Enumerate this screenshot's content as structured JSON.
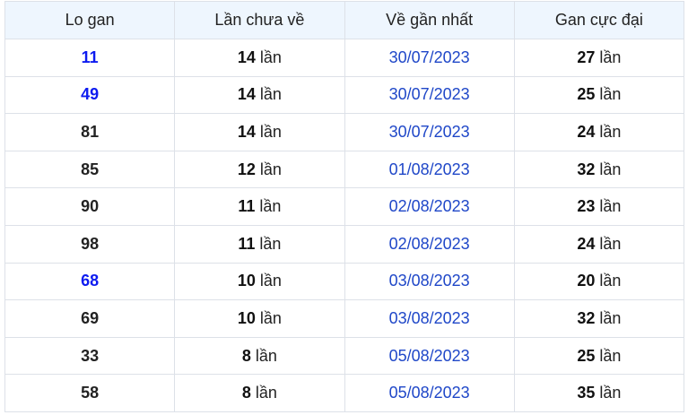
{
  "table": {
    "headers": [
      "Lo gan",
      "Lần chưa về",
      "Về gần nhất",
      "Gan cực đại"
    ],
    "unit": "lần",
    "rows": [
      {
        "lo": "11",
        "highlight": true,
        "chua_ve": "14",
        "gan_nhat": "30/07/2023",
        "cuc_dai": "27"
      },
      {
        "lo": "49",
        "highlight": true,
        "chua_ve": "14",
        "gan_nhat": "30/07/2023",
        "cuc_dai": "25"
      },
      {
        "lo": "81",
        "highlight": false,
        "chua_ve": "14",
        "gan_nhat": "30/07/2023",
        "cuc_dai": "24"
      },
      {
        "lo": "85",
        "highlight": false,
        "chua_ve": "12",
        "gan_nhat": "01/08/2023",
        "cuc_dai": "32"
      },
      {
        "lo": "90",
        "highlight": false,
        "chua_ve": "11",
        "gan_nhat": "02/08/2023",
        "cuc_dai": "23"
      },
      {
        "lo": "98",
        "highlight": false,
        "chua_ve": "11",
        "gan_nhat": "02/08/2023",
        "cuc_dai": "24"
      },
      {
        "lo": "68",
        "highlight": true,
        "chua_ve": "10",
        "gan_nhat": "03/08/2023",
        "cuc_dai": "20"
      },
      {
        "lo": "69",
        "highlight": false,
        "chua_ve": "10",
        "gan_nhat": "03/08/2023",
        "cuc_dai": "32"
      },
      {
        "lo": "33",
        "highlight": false,
        "chua_ve": "8",
        "gan_nhat": "05/08/2023",
        "cuc_dai": "25"
      },
      {
        "lo": "58",
        "highlight": false,
        "chua_ve": "8",
        "gan_nhat": "05/08/2023",
        "cuc_dai": "35"
      }
    ]
  },
  "colors": {
    "highlight_number": "#0d1bf0",
    "date": "#1f47c8",
    "header_bg": "#eef6fe",
    "border": "#dde1e8"
  }
}
